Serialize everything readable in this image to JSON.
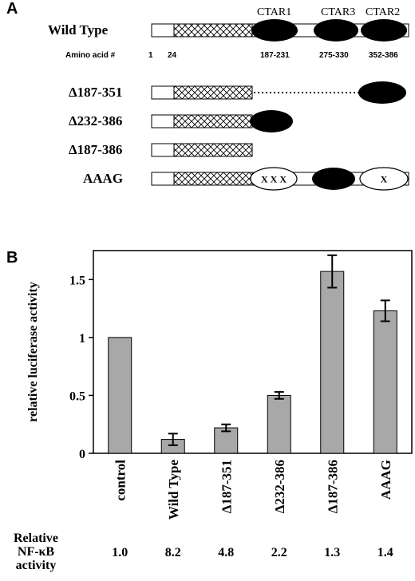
{
  "panel_a": {
    "label": "A",
    "ctar_labels": [
      "CTAR1",
      "CTAR3",
      "CTAR2"
    ],
    "amino_acid_label": "Amino acid #",
    "amino_acid_positions": [
      "1",
      "24",
      "187-231",
      "275-330",
      "352-386"
    ],
    "constructs": [
      {
        "name": "Wild Type",
        "domains": [
          "box",
          "hatched",
          "ctar1",
          "ctar3",
          "ctar2"
        ]
      },
      {
        "name": "Δ187-351",
        "domains": [
          "box",
          "hatched",
          "dotted",
          "ctar2"
        ]
      },
      {
        "name": "Δ232-386",
        "domains": [
          "box",
          "hatched",
          "ctar1"
        ]
      },
      {
        "name": "Δ187-386",
        "domains": [
          "box",
          "hatched"
        ]
      },
      {
        "name": "AAAG",
        "domains": [
          "box",
          "hatched",
          "mut-ctar1",
          "ctar3",
          "mut-ctar2"
        ]
      }
    ],
    "mutation_marks": [
      "X X X",
      "X"
    ]
  },
  "panel_b": {
    "label": "B",
    "footer": {
      "label_lines": [
        "Relative",
        "NF-κB",
        "activity"
      ],
      "values": [
        "1.0",
        "8.2",
        "4.8",
        "2.2",
        "1.3",
        "1.4"
      ]
    }
  },
  "chart_data": {
    "type": "bar",
    "categories": [
      "control",
      "Wild Type",
      "Δ187-351",
      "Δ232-386",
      "Δ187-386",
      "AAAG"
    ],
    "values": [
      1.0,
      0.12,
      0.22,
      0.5,
      1.57,
      1.23
    ],
    "errors": [
      0,
      0.05,
      0.03,
      0.03,
      0.14,
      0.09
    ],
    "ylabel": "relative luciferase activity",
    "ylim": [
      0,
      1.75
    ],
    "yticks": [
      0,
      0.5,
      1,
      1.5
    ],
    "ytick_labels": [
      "0",
      "0.5",
      "1",
      "1.5"
    ],
    "bar_color": "#a8a8a8",
    "grid": false
  }
}
